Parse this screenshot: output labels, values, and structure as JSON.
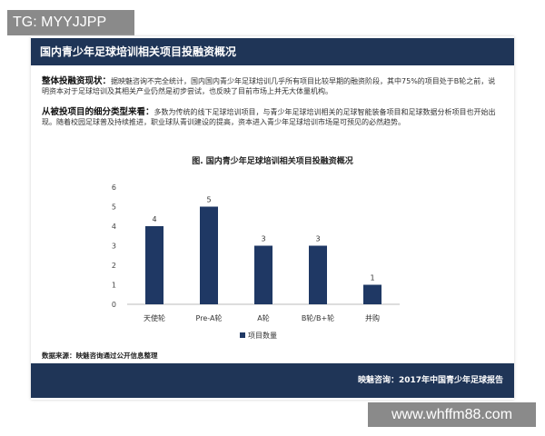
{
  "watermark_top": "TG: MYYJJPP",
  "watermark_bottom": "www.whffm88.com",
  "header_title": "国内青少年足球培训相关项目投融资概况",
  "para1": {
    "label": "整体投融资现状：",
    "text": "据映魅咨询不完全统计，国内国内青少年足球培训几乎所有项目比较早期的融资阶段，其中75%的项目处于B轮之前，说明资本对于足球培训及其相关产业仍然是初步尝试，也反映了目前市场上并无大体量机构。"
  },
  "para2": {
    "label": "从被投项目的细分类型来看：",
    "text": "多数为传统的线下足球培训项目，与青少年足球培训相关的足球智能装备项目和足球数据分析项目也开始出现。随着校园足球普及持续推进，职业球队青训建设的提高，资本进入青少年足球培训市场是可预见的必然趋势。"
  },
  "source": "数据来源：映魅咨询通过公开信息整理",
  "footer": "映魅咨询：2017年中国青少年足球报告",
  "chart_data": {
    "type": "bar",
    "title": "图. 国内青少年足球培训相关项目投融资概况",
    "categories": [
      "天使轮",
      "Pre-A轮",
      "A轮",
      "B轮/B+轮",
      "并购"
    ],
    "series": [
      {
        "name": "项目数量",
        "values": [
          4,
          5,
          3,
          3,
          1
        ]
      }
    ],
    "ylim": [
      0,
      6
    ],
    "yticks": [
      0,
      1,
      2,
      3,
      4,
      5,
      6
    ],
    "grid": false,
    "legend": "bottom",
    "bar_color": "#1f3864"
  }
}
